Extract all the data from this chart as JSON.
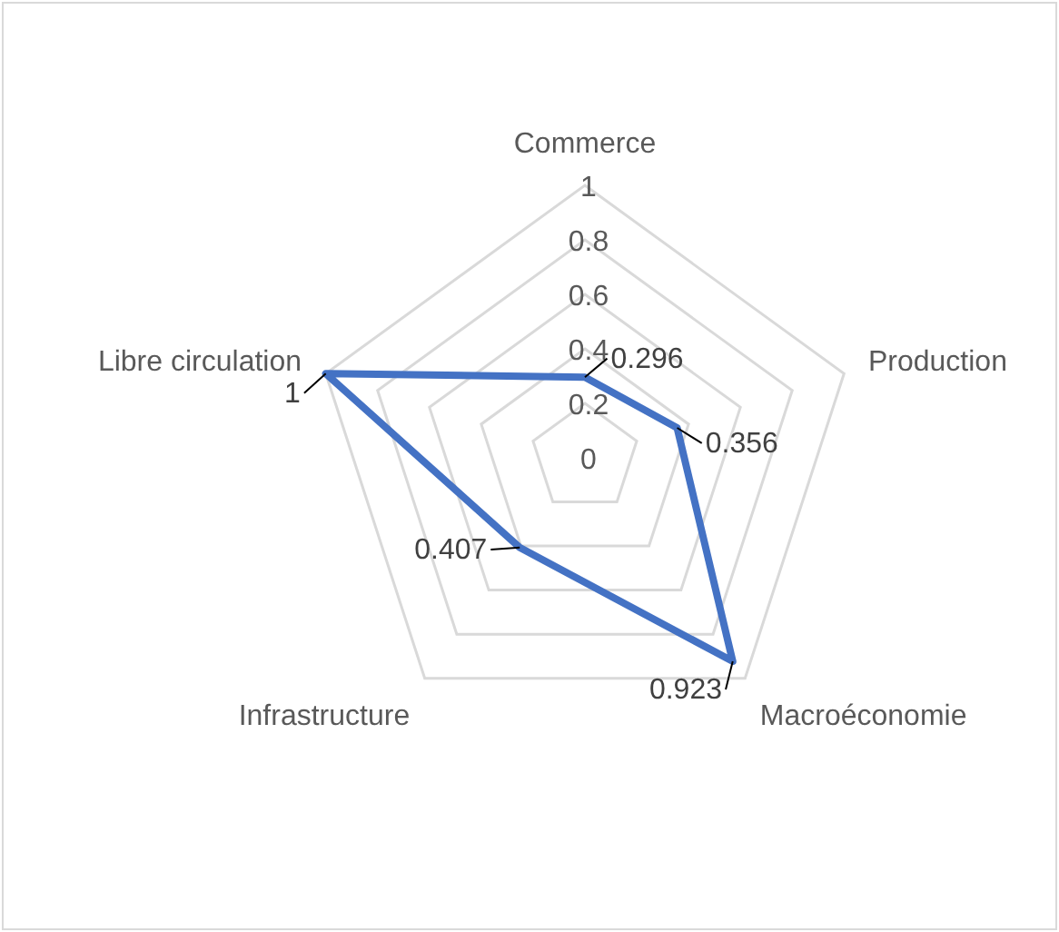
{
  "chart_data": {
    "type": "radar",
    "categories": [
      "Commerce",
      "Production",
      "Macroéconomie",
      "Infrastructure",
      "Libre circulation"
    ],
    "series": [
      {
        "color": "#4472c4",
        "values": [
          0.296,
          0.356,
          0.923,
          0.407,
          1
        ]
      }
    ],
    "ylim": [
      0,
      1
    ],
    "yticks": [
      0,
      0.2,
      0.4,
      0.6,
      0.8,
      1
    ],
    "grid": true,
    "data_labels": true,
    "marker": "none",
    "line_style": "solid"
  }
}
